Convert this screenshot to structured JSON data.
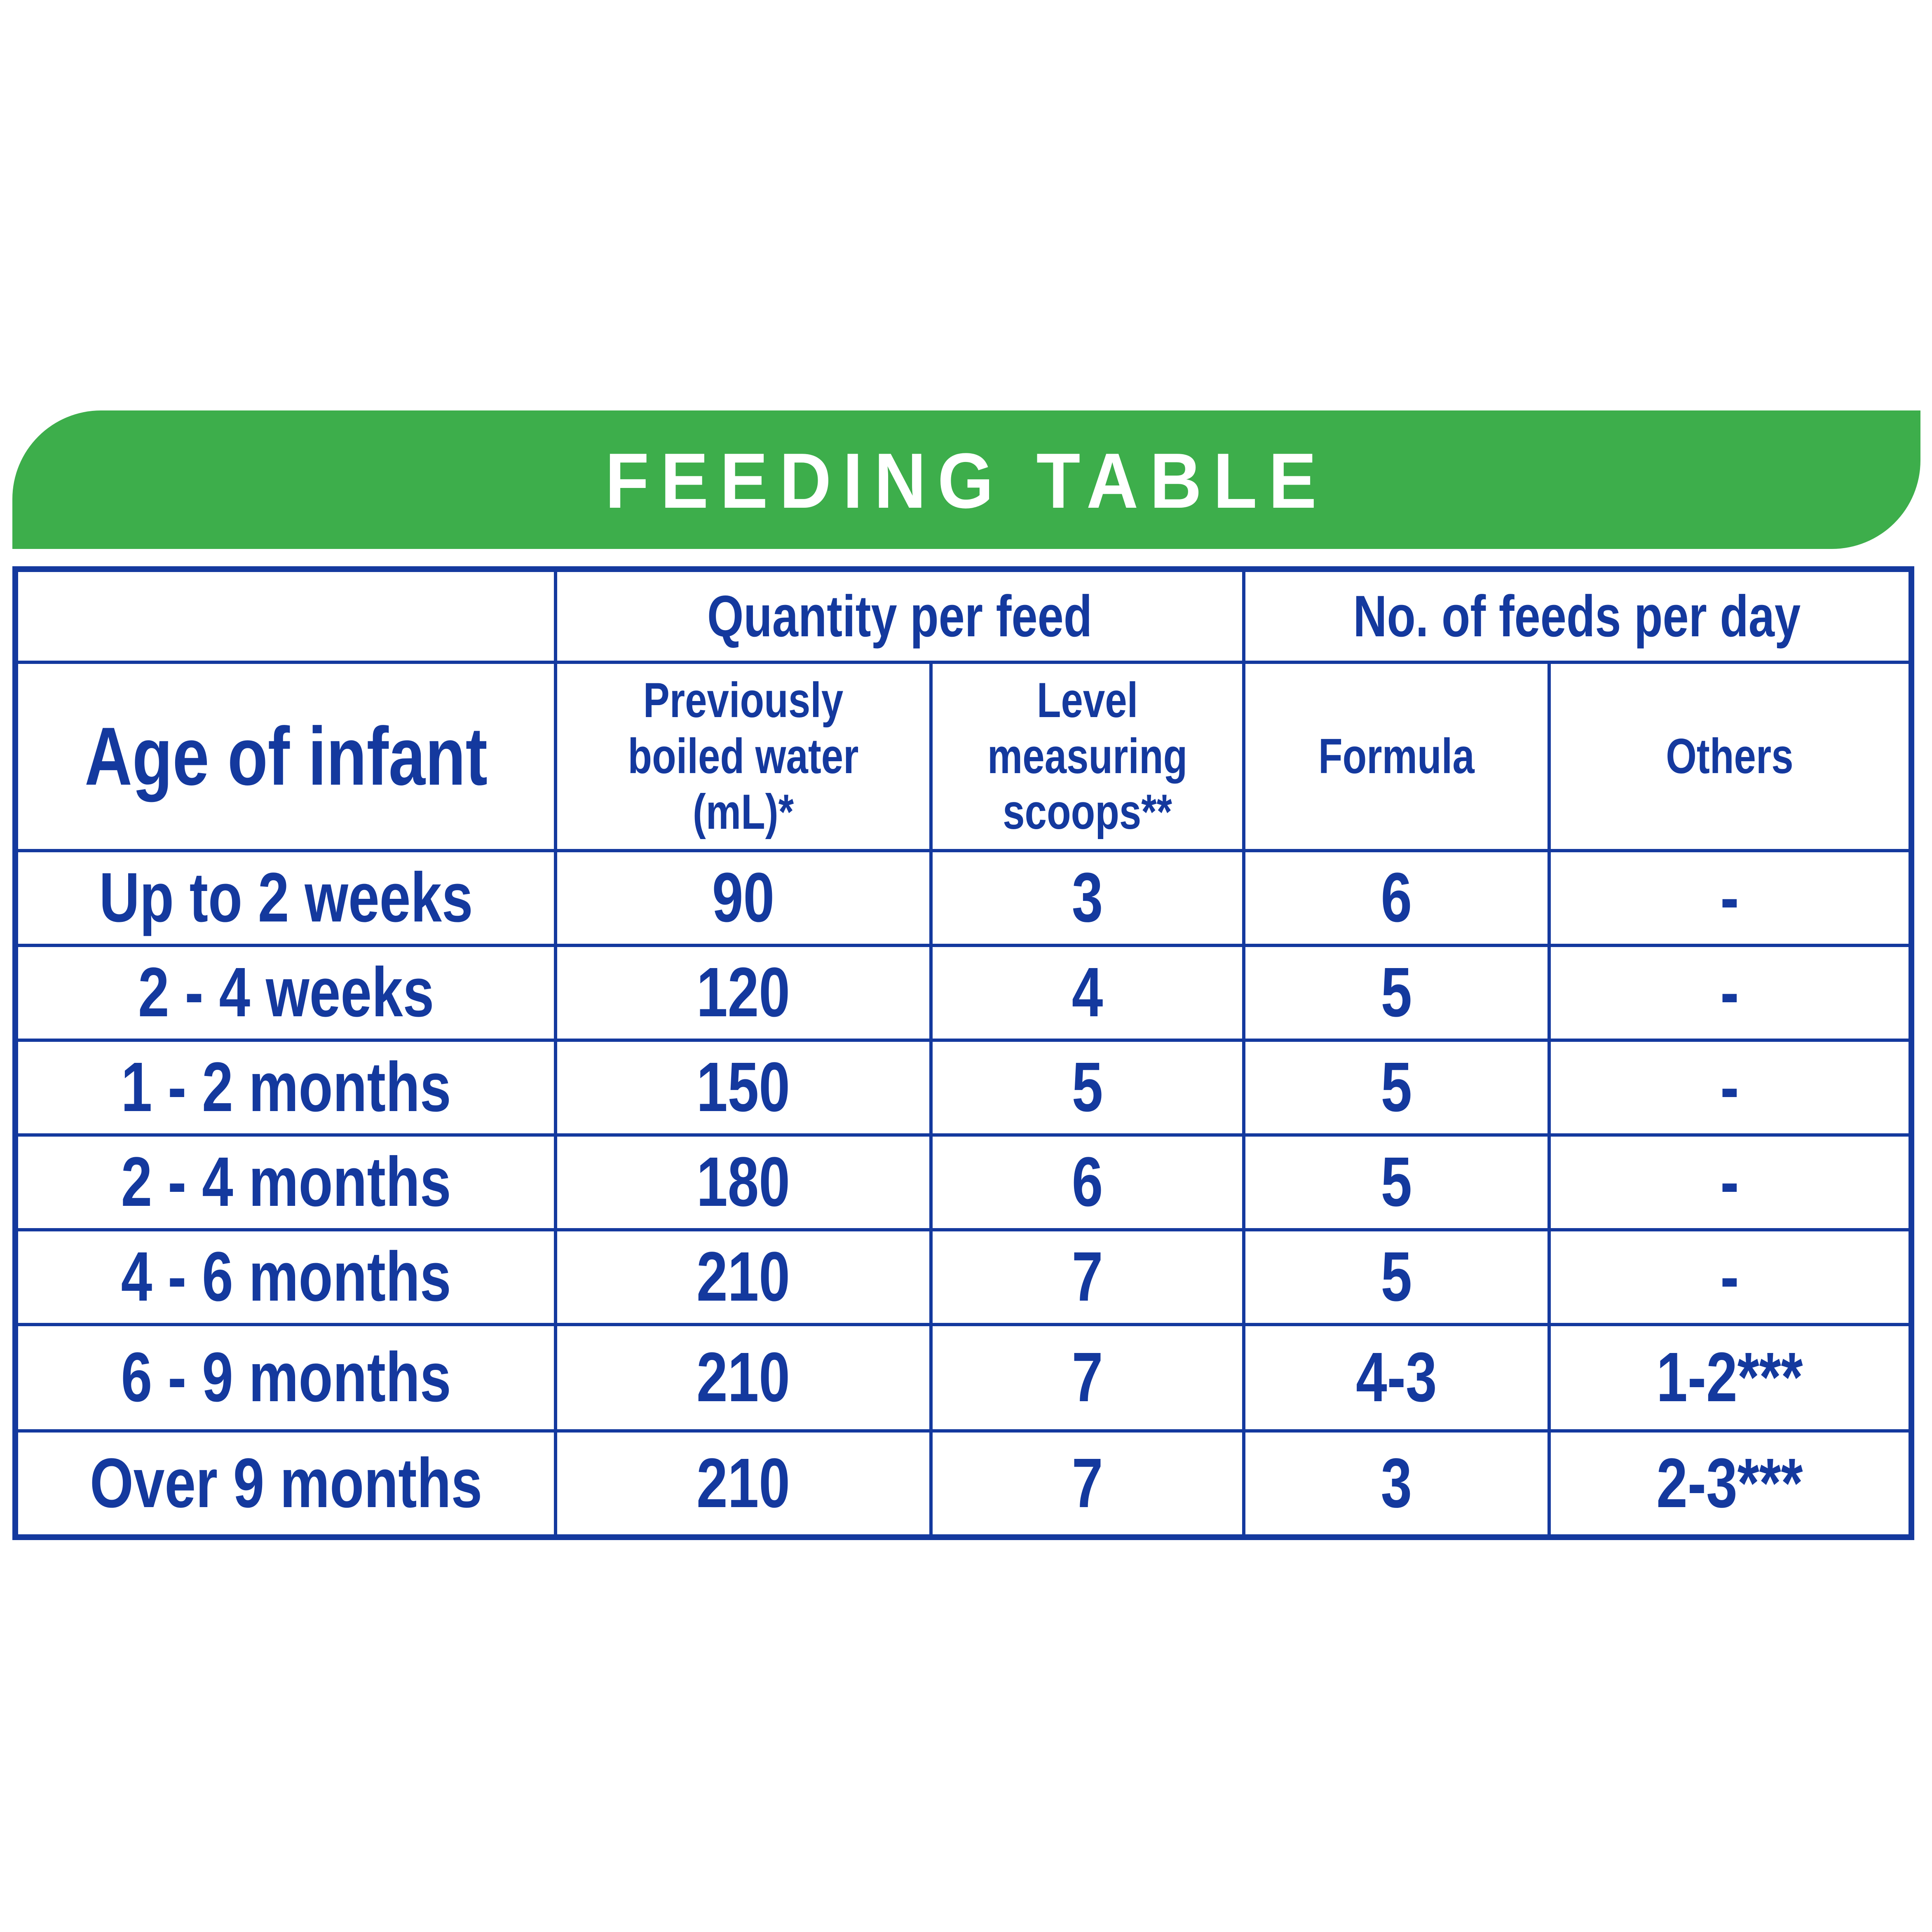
{
  "colors": {
    "banner_green": "#3DAE4B",
    "table_blue": "#14399E",
    "banner_text": "#ffffff"
  },
  "banner": {
    "title": "FEEDING TABLE"
  },
  "table": {
    "group_headers": [
      {
        "label": ""
      },
      {
        "label": "Quantity per feed"
      },
      {
        "label": "No. of feeds per day"
      }
    ],
    "columns": [
      {
        "id": "age",
        "label": "Age of infant"
      },
      {
        "id": "water",
        "label": "Previously\nboiled water (mL)*"
      },
      {
        "id": "scoops",
        "label": "Level measuring\nscoops**"
      },
      {
        "id": "formula",
        "label": "Formula"
      },
      {
        "id": "others",
        "label": "Others"
      }
    ],
    "rows": [
      {
        "age": "Up to 2 weeks",
        "water": "90",
        "scoops": "3",
        "formula": "6",
        "others": "-"
      },
      {
        "age": "2 - 4 weeks",
        "water": "120",
        "scoops": "4",
        "formula": "5",
        "others": "-"
      },
      {
        "age": "1 - 2 months",
        "water": "150",
        "scoops": "5",
        "formula": "5",
        "others": "-"
      },
      {
        "age": "2 - 4 months",
        "water": "180",
        "scoops": "6",
        "formula": "5",
        "others": "-"
      },
      {
        "age": "4 - 6 months",
        "water": "210",
        "scoops": "7",
        "formula": "5",
        "others": "-"
      },
      {
        "age": "6 - 9 months",
        "water": "210",
        "scoops": "7",
        "formula": "4-3",
        "others": "1-2***"
      },
      {
        "age": "Over 9 months",
        "water": "210",
        "scoops": "7",
        "formula": "3",
        "others": "2-3***"
      }
    ]
  }
}
